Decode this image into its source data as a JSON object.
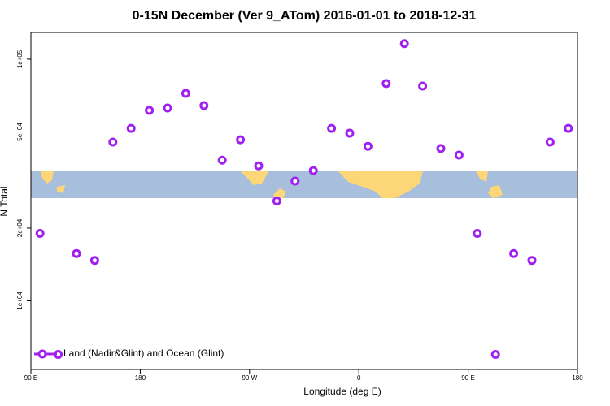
{
  "chart_data": {
    "type": "scatter",
    "title": "0-15N December (Ver 9_ATom)   2016-01-01 to 2018-12-31",
    "x_label": "Longitude (deg E)",
    "y_label": "N Total",
    "log_y": true,
    "legend_position": "bottom-left",
    "xlim": [
      90,
      540
    ],
    "ylim": [
      5200,
      129000
    ],
    "xticks": [
      {
        "value": 90,
        "label": "90 E"
      },
      180,
      {
        "value": 270,
        "label": "90 W"
      },
      {
        "value": 360,
        "label": "0"
      },
      {
        "value": 450,
        "label": "90 E"
      },
      {
        "value": 540,
        "label": "180"
      }
    ],
    "yticks": [
      {
        "value": 10000,
        "label": "1e+04"
      },
      {
        "value": 20000,
        "label": "2e+04"
      },
      {
        "value": 50000,
        "label": "5e+04"
      },
      {
        "value": 100000,
        "label": "1e+05"
      }
    ],
    "series": [
      {
        "name": "Land (Nadir&Glint) and Ocean (Glint)",
        "color": "#a020f0",
        "x": [
          97.5,
          112.5,
          127.5,
          142.5,
          157.5,
          172.5,
          187.5,
          202.5,
          217.5,
          232.5,
          247.5,
          262.5,
          277.5,
          292.5,
          307.5,
          322.5,
          337.5,
          352.5,
          367.5,
          382.5,
          397.5,
          412.5,
          427.5,
          442.5,
          457.5,
          472.5,
          487.5,
          502.5,
          517.5,
          532.5
        ],
        "values": [
          19000,
          6000,
          15700,
          14700,
          45400,
          51700,
          61400,
          62800,
          72200,
          64300,
          38200,
          46400,
          36200,
          25900,
          31300,
          34600,
          51700,
          49400,
          43600,
          79300,
          116000,
          77400,
          42700,
          40100,
          19000,
          6000,
          15700,
          14700,
          45400,
          51700
        ]
      }
    ]
  }
}
